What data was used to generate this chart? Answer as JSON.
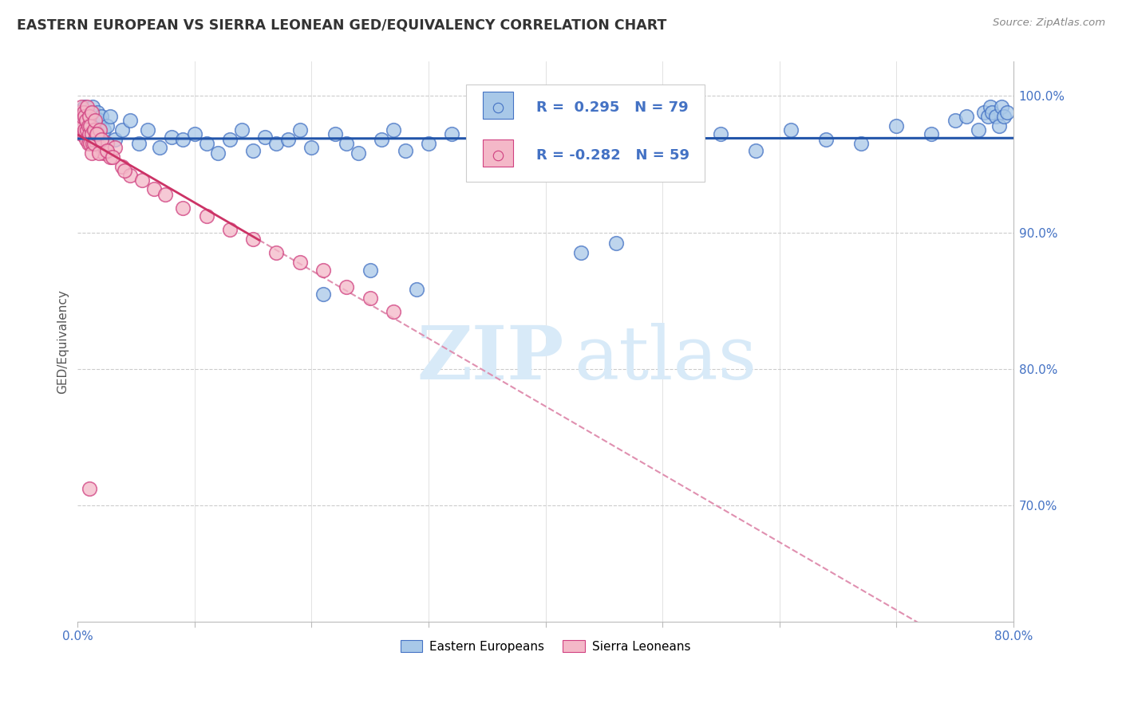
{
  "title": "EASTERN EUROPEAN VS SIERRA LEONEAN GED/EQUIVALENCY CORRELATION CHART",
  "source": "Source: ZipAtlas.com",
  "ylabel": "GED/Equivalency",
  "ytick_labels": [
    "100.0%",
    "90.0%",
    "80.0%",
    "70.0%"
  ],
  "ytick_positions": [
    1.0,
    0.9,
    0.8,
    0.7
  ],
  "xlim": [
    0.0,
    0.8
  ],
  "ylim": [
    0.615,
    1.025
  ],
  "legend_blue_r": "R =  0.295",
  "legend_blue_n": "N = 79",
  "legend_pink_r": "R = -0.282",
  "legend_pink_n": "N = 59",
  "legend_label_blue": "Eastern Europeans",
  "legend_label_pink": "Sierra Leoneans",
  "blue_fill": "#a8c8e8",
  "blue_edge": "#4472c4",
  "pink_fill": "#f4b8c8",
  "pink_edge": "#d04080",
  "blue_line": "#2255aa",
  "pink_line": "#cc3366",
  "pink_dash": "#e090b0",
  "watermark_color": "#d8eaf8",
  "background_color": "#ffffff",
  "blue_x": [
    0.002,
    0.003,
    0.004,
    0.005,
    0.006,
    0.007,
    0.008,
    0.009,
    0.01,
    0.011,
    0.012,
    0.013,
    0.014,
    0.015,
    0.016,
    0.017,
    0.018,
    0.019,
    0.02,
    0.022,
    0.025,
    0.028,
    0.032,
    0.038,
    0.045,
    0.052,
    0.06,
    0.07,
    0.08,
    0.09,
    0.1,
    0.11,
    0.12,
    0.13,
    0.14,
    0.15,
    0.16,
    0.17,
    0.18,
    0.19,
    0.2,
    0.21,
    0.22,
    0.23,
    0.24,
    0.25,
    0.26,
    0.27,
    0.28,
    0.29,
    0.3,
    0.32,
    0.34,
    0.36,
    0.38,
    0.4,
    0.43,
    0.46,
    0.49,
    0.52,
    0.55,
    0.58,
    0.61,
    0.64,
    0.67,
    0.7,
    0.73,
    0.75,
    0.76,
    0.77,
    0.775,
    0.778,
    0.78,
    0.782,
    0.785,
    0.788,
    0.79,
    0.792,
    0.795
  ],
  "blue_y": [
    0.988,
    0.975,
    0.99,
    0.985,
    0.992,
    0.978,
    0.988,
    0.982,
    0.975,
    0.985,
    0.978,
    0.992,
    0.975,
    0.985,
    0.978,
    0.988,
    0.975,
    0.982,
    0.985,
    0.975,
    0.978,
    0.985,
    0.968,
    0.975,
    0.982,
    0.965,
    0.975,
    0.962,
    0.97,
    0.968,
    0.972,
    0.965,
    0.958,
    0.968,
    0.975,
    0.96,
    0.97,
    0.965,
    0.968,
    0.975,
    0.962,
    0.855,
    0.972,
    0.965,
    0.958,
    0.872,
    0.968,
    0.975,
    0.96,
    0.858,
    0.965,
    0.972,
    0.968,
    0.975,
    0.962,
    0.968,
    0.885,
    0.892,
    0.965,
    0.968,
    0.972,
    0.96,
    0.975,
    0.968,
    0.965,
    0.978,
    0.972,
    0.982,
    0.985,
    0.975,
    0.988,
    0.985,
    0.992,
    0.988,
    0.985,
    0.978,
    0.992,
    0.985,
    0.988
  ],
  "pink_x": [
    0.001,
    0.002,
    0.003,
    0.003,
    0.004,
    0.004,
    0.005,
    0.005,
    0.006,
    0.006,
    0.007,
    0.007,
    0.008,
    0.008,
    0.009,
    0.009,
    0.01,
    0.01,
    0.011,
    0.011,
    0.012,
    0.012,
    0.013,
    0.014,
    0.015,
    0.015,
    0.016,
    0.017,
    0.018,
    0.019,
    0.02,
    0.022,
    0.025,
    0.028,
    0.032,
    0.038,
    0.045,
    0.055,
    0.065,
    0.075,
    0.09,
    0.11,
    0.13,
    0.15,
    0.17,
    0.19,
    0.21,
    0.23,
    0.25,
    0.27,
    0.01,
    0.012,
    0.014,
    0.016,
    0.018,
    0.02,
    0.025,
    0.03,
    0.04
  ],
  "pink_y": [
    0.975,
    0.988,
    0.972,
    0.992,
    0.978,
    0.985,
    0.972,
    0.988,
    0.975,
    0.985,
    0.968,
    0.982,
    0.975,
    0.992,
    0.965,
    0.978,
    0.972,
    0.985,
    0.965,
    0.978,
    0.972,
    0.988,
    0.965,
    0.975,
    0.968,
    0.982,
    0.965,
    0.972,
    0.96,
    0.975,
    0.962,
    0.958,
    0.965,
    0.955,
    0.962,
    0.948,
    0.942,
    0.938,
    0.932,
    0.928,
    0.918,
    0.912,
    0.902,
    0.895,
    0.885,
    0.878,
    0.872,
    0.86,
    0.852,
    0.842,
    0.712,
    0.958,
    0.965,
    0.972,
    0.958,
    0.968,
    0.96,
    0.955,
    0.945
  ]
}
